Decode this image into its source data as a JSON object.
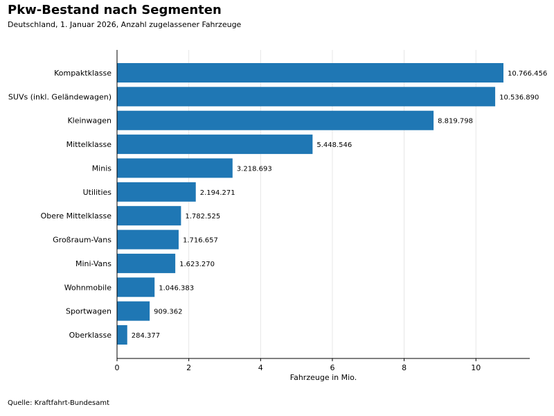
{
  "chart_data": {
    "type": "bar",
    "orientation": "horizontal",
    "title": "Pkw-Bestand nach Segmenten",
    "subtitle": "Deutschland, 1. Januar 2026, Anzahl zugelassener Fahrzeuge",
    "xlabel": "Fahrzeuge in Mio.",
    "ylabel": "",
    "xlim": [
      0,
      11.5
    ],
    "xticks": [
      0,
      2,
      4,
      6,
      8,
      10
    ],
    "grid": "vertical",
    "bar_color": "#1f77b4",
    "categories": [
      "Kompaktklasse",
      "SUVs (inkl. Geländewagen)",
      "Kleinwagen",
      "Mittelklasse",
      "Minis",
      "Utilities",
      "Obere Mittelklasse",
      "Großraum-Vans",
      "Mini-Vans",
      "Wohnmobile",
      "Sportwagen",
      "Oberklasse"
    ],
    "values": [
      10766456,
      10536890,
      8819798,
      5448546,
      3218693,
      2194271,
      1782525,
      1716657,
      1623270,
      1046383,
      909362,
      284377
    ],
    "data_labels": [
      "10.766.456",
      "10.536.890",
      "8.819.798",
      "5.448.546",
      "3.218.693",
      "2.194.271",
      "1.782.525",
      "1.716.657",
      "1.623.270",
      "1.046.383",
      "909.362",
      "284.377"
    ]
  },
  "source": "Quelle: Kraftfahrt-Bundesamt"
}
